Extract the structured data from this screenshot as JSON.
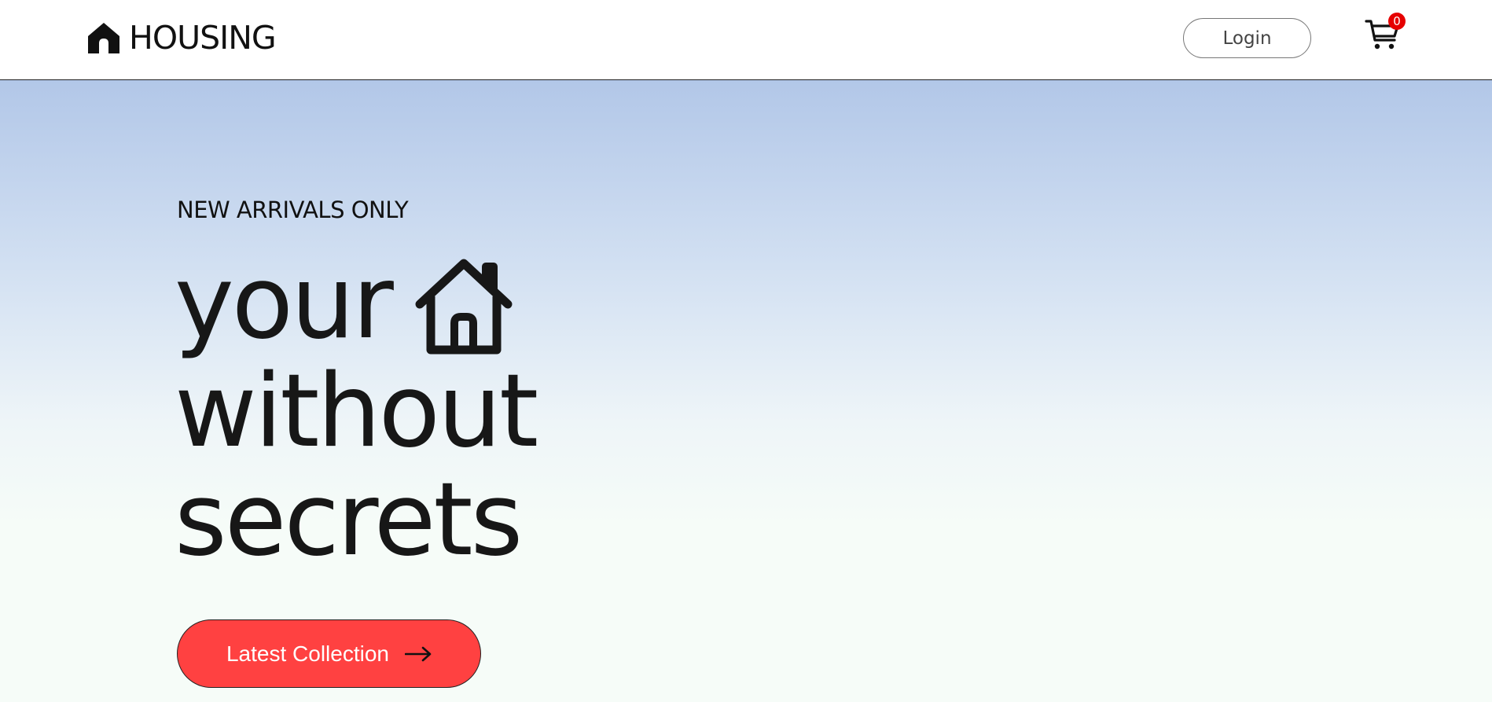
{
  "navbar": {
    "brand": {
      "name": "HOUSING",
      "icon": "home-icon"
    },
    "login_label": "Login",
    "cart": {
      "icon": "cart-icon",
      "count": "0"
    }
  },
  "hero": {
    "eyebrow": "NEW ARRIVALS ONLY",
    "headline": {
      "line1": "your",
      "line1_icon": "house-outline-icon",
      "line2": "without",
      "line3": "secrets"
    },
    "cta": {
      "label": "Latest Collection",
      "icon": "arrow-right-icon"
    }
  },
  "colors": {
    "cta_background": "#ff4141",
    "badge": "#e60000",
    "gradient_top": "#b2c7e8",
    "gradient_bottom": "#f6fcf8"
  }
}
